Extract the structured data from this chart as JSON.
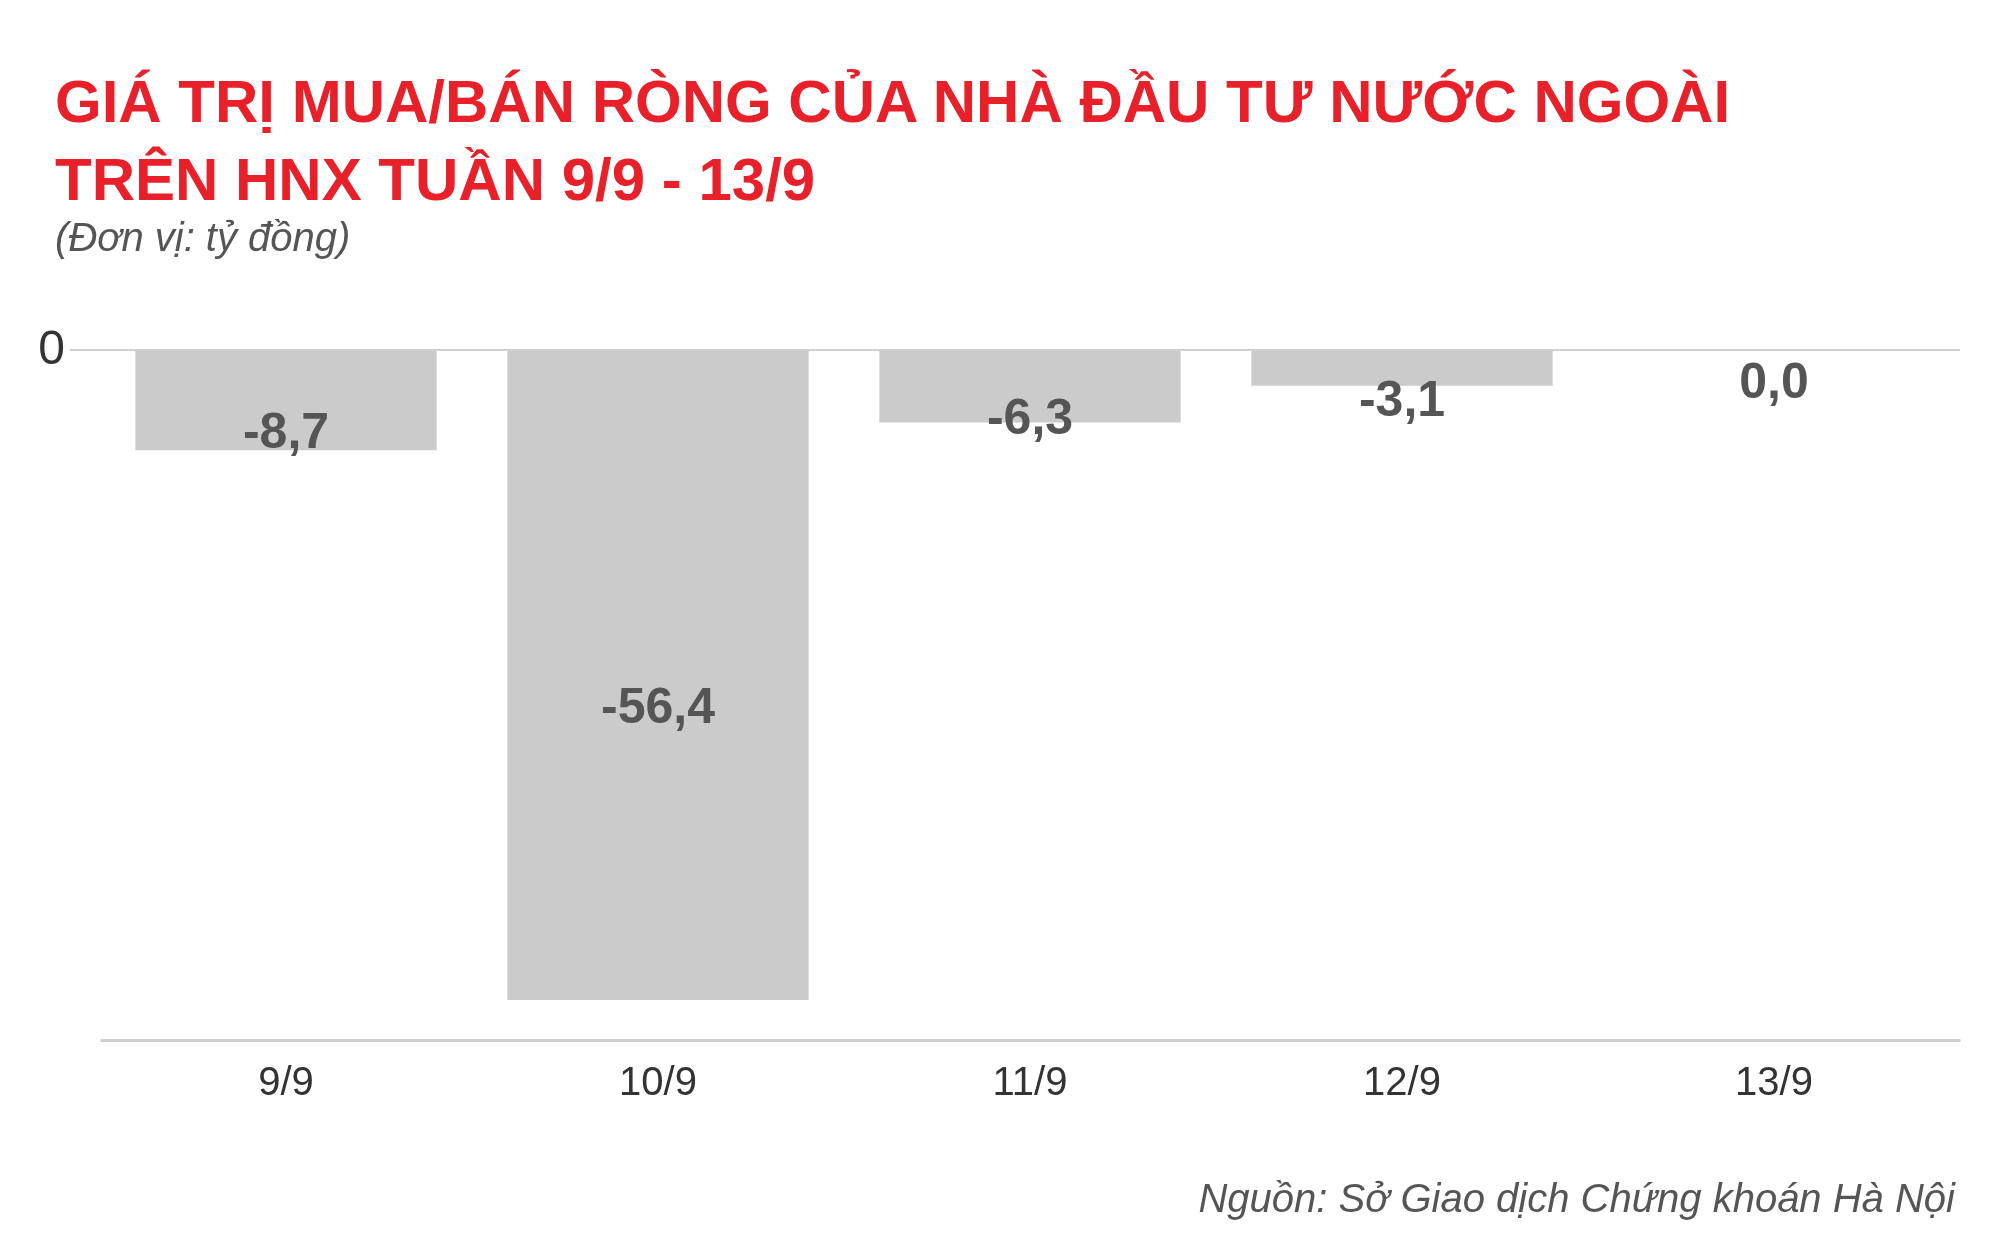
{
  "chart_data": {
    "type": "bar",
    "title": "GIÁ TRỊ MUA/BÁN RÒNG CỦA NHÀ ĐẦU TƯ NƯỚC NGOÀI TRÊN HNX TUẦN 9/9 - 13/9",
    "subtitle": "(Đơn vị: tỷ đồng)",
    "categories": [
      "9/9",
      "10/9",
      "11/9",
      "12/9",
      "13/9"
    ],
    "values": [
      -8.7,
      -56.4,
      -6.3,
      -3.1,
      0.0
    ],
    "value_labels": [
      "-8,7",
      "-56,4",
      "-6,3",
      "-3,1",
      "0,0"
    ],
    "color": "#cccbcc",
    "ref_lines": [
      {
        "axis": "y",
        "value": 0,
        "label": "0",
        "color": "#cfcfcf"
      }
    ],
    "annotations": [
      "Nguồn: Sở Giao dịch Chứng khoán Hà Nội"
    ]
  }
}
